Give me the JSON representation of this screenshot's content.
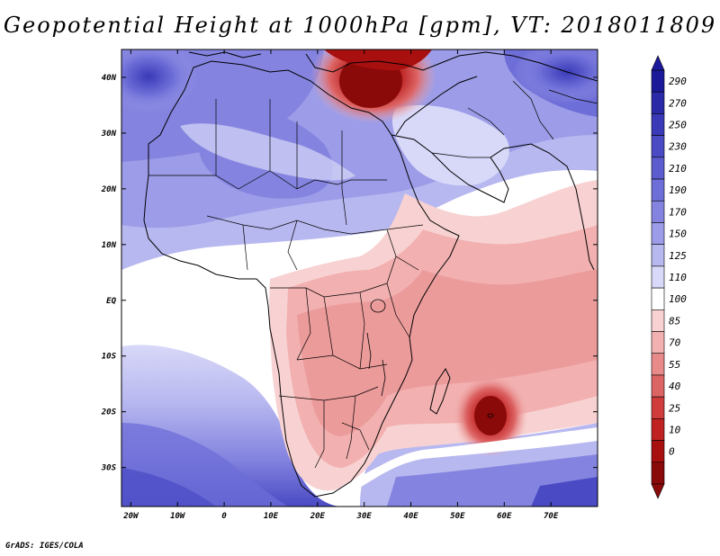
{
  "title": "Geopotential Height at 1000hPa [gpm], VT: 2018011809",
  "footer": "GrADS: IGES/COLA",
  "map": {
    "x_ticks": [
      "20W",
      "10W",
      "0",
      "10E",
      "20E",
      "30E",
      "40E",
      "50E",
      "60E",
      "70E"
    ],
    "y_ticks": [
      "40N",
      "30N",
      "20N",
      "10N",
      "EQ",
      "10S",
      "20S",
      "30S"
    ],
    "lon_range": [
      -22,
      80
    ],
    "lat_range": [
      -37,
      45
    ]
  },
  "colorbar": {
    "labels": [
      "290",
      "270",
      "250",
      "230",
      "210",
      "190",
      "170",
      "150",
      "125",
      "110",
      "100",
      "85",
      "70",
      "55",
      "40",
      "25",
      "10",
      "0"
    ],
    "colors": [
      "#1c1a9a",
      "#2a2aa8",
      "#3a3ab8",
      "#4a4ac4",
      "#5c5cce",
      "#6e6ed8",
      "#8484e0",
      "#9c9ce8",
      "#b8b8f0",
      "#d8d8f8",
      "#ffffff",
      "#f8d2d2",
      "#f2b0b0",
      "#e88a8a",
      "#dd6464",
      "#d03c3c",
      "#c02222",
      "#a80f0f",
      "#8a0a0a"
    ]
  }
}
